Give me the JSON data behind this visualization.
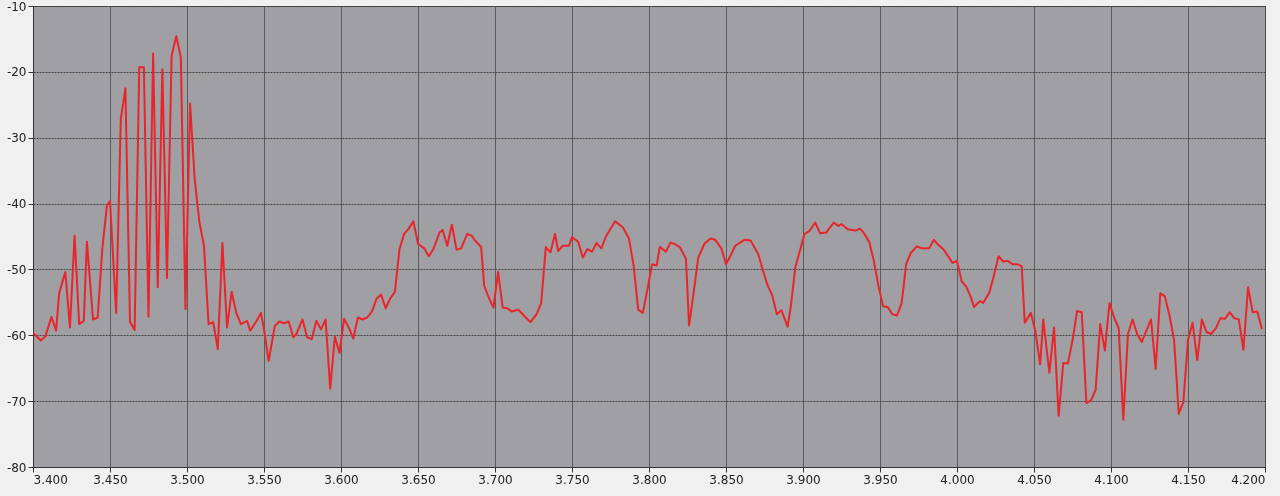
{
  "chart_data": {
    "type": "line",
    "xlim": [
      3.4,
      4.2
    ],
    "ylim": [
      -80,
      -10
    ],
    "xticks": [
      {
        "value": 3.4,
        "label": "3.400"
      },
      {
        "value": 3.45,
        "label": "3.450"
      },
      {
        "value": 3.5,
        "label": "3.500"
      },
      {
        "value": 3.55,
        "label": "3.550"
      },
      {
        "value": 3.6,
        "label": "3.600"
      },
      {
        "value": 3.65,
        "label": "3.650"
      },
      {
        "value": 3.7,
        "label": "3.700"
      },
      {
        "value": 3.75,
        "label": "3.750"
      },
      {
        "value": 3.8,
        "label": "3.800"
      },
      {
        "value": 3.85,
        "label": "3.850"
      },
      {
        "value": 3.9,
        "label": "3.900"
      },
      {
        "value": 3.95,
        "label": "3.950"
      },
      {
        "value": 4.0,
        "label": "4.000"
      },
      {
        "value": 4.05,
        "label": "4.050"
      },
      {
        "value": 4.1,
        "label": "4.100"
      },
      {
        "value": 4.15,
        "label": "4.150"
      },
      {
        "value": 4.2,
        "label": "4.200"
      }
    ],
    "yticks": [
      -80,
      -70,
      -60,
      -50,
      -40,
      -30,
      -20,
      -10
    ],
    "grid": true,
    "series": [
      {
        "color": "#e8252a",
        "x": [
          3.4,
          3.405,
          3.408,
          3.412,
          3.415,
          3.417,
          3.421,
          3.424,
          3.427,
          3.43,
          3.433,
          3.435,
          3.439,
          3.442,
          3.445,
          3.448,
          3.45,
          3.454,
          3.457,
          3.46,
          3.463,
          3.466,
          3.469,
          3.472,
          3.475,
          3.478,
          3.481,
          3.484,
          3.487,
          3.49,
          3.493,
          3.496,
          3.499,
          3.502,
          3.505,
          3.508,
          3.511,
          3.514,
          3.517,
          3.52,
          3.523,
          3.526,
          3.529,
          3.532,
          3.535,
          3.539,
          3.541,
          3.545,
          3.548,
          3.55,
          3.553,
          3.557,
          3.56,
          3.563,
          3.566,
          3.569,
          3.571,
          3.575,
          3.578,
          3.581,
          3.584,
          3.587,
          3.59,
          3.593,
          3.596,
          3.599,
          3.602,
          3.605,
          3.608,
          3.611,
          3.614,
          3.617,
          3.62,
          3.623,
          3.626,
          3.629,
          3.632,
          3.635,
          3.638,
          3.641,
          3.644,
          3.647,
          3.65,
          3.654,
          3.657,
          3.66,
          3.664,
          3.666,
          3.669,
          3.672,
          3.675,
          3.678,
          3.682,
          3.685,
          3.687,
          3.691,
          3.693,
          3.696,
          3.699,
          3.702,
          3.705,
          3.708,
          3.711,
          3.715,
          3.718,
          3.72,
          3.723,
          3.727,
          3.73,
          3.733,
          3.736,
          3.739,
          3.741,
          3.744,
          3.748,
          3.75,
          3.754,
          3.757,
          3.76,
          3.763,
          3.766,
          3.769,
          3.772,
          3.778,
          3.783,
          3.787,
          3.79,
          3.793,
          3.796,
          3.799,
          3.802,
          3.805,
          3.807,
          3.811,
          3.814,
          3.817,
          3.82,
          3.824,
          3.826,
          3.829,
          3.832,
          3.836,
          3.84,
          3.843,
          3.847,
          3.85,
          3.853,
          3.856,
          3.862,
          3.866,
          3.871,
          3.874,
          3.877,
          3.88,
          3.883,
          3.886,
          3.89,
          3.892,
          3.895,
          3.901,
          3.904,
          3.908,
          3.911,
          3.915,
          3.92,
          3.923,
          3.925,
          3.929,
          3.934,
          3.937,
          3.939,
          3.943,
          3.946,
          3.949,
          3.952,
          3.955,
          3.958,
          3.961,
          3.964,
          3.967,
          3.97,
          3.974,
          3.977,
          3.982,
          3.985,
          3.988,
          3.991,
          3.994,
          3.997,
          4.0,
          4.003,
          4.006,
          4.009,
          4.011,
          4.015,
          4.017,
          4.021,
          4.024,
          4.027,
          4.03,
          4.033,
          4.036,
          4.039,
          4.042,
          4.044,
          4.048,
          4.051,
          4.054,
          4.056,
          4.06,
          4.063,
          4.066,
          4.069,
          4.072,
          4.075,
          4.078,
          4.081,
          4.084,
          4.087,
          4.09,
          4.093,
          4.096,
          4.099,
          4.102,
          4.105,
          4.108,
          4.111,
          4.114,
          4.117,
          4.12,
          4.123,
          4.126,
          4.129,
          4.132,
          4.135,
          4.138,
          4.141,
          4.144,
          4.147,
          4.15,
          4.153,
          4.156,
          4.159,
          4.162,
          4.165,
          4.168,
          4.171,
          4.174,
          4.177,
          4.18,
          4.183,
          4.186,
          4.189,
          4.192,
          4.195,
          4.198
        ],
        "values": [
          -59.6,
          -60.8,
          -60.2,
          -57.2,
          -59.3,
          -53.6,
          -50.4,
          -58.8,
          -44.9,
          -58.3,
          -57.8,
          -45.8,
          -57.6,
          -57.3,
          -46.9,
          -40.3,
          -39.6,
          -56.6,
          -27.2,
          -22.5,
          -58.0,
          -59.2,
          -19.3,
          -19.3,
          -57.2,
          -17.2,
          -52.7,
          -19.6,
          -51.3,
          -17.6,
          -14.6,
          -17.8,
          -56.0,
          -24.8,
          -36.3,
          -42.7,
          -46.4,
          -58.3,
          -58.0,
          -62.1,
          -46.0,
          -58.8,
          -53.4,
          -56.6,
          -58.3,
          -57.8,
          -59.3,
          -57.9,
          -56.6,
          -59.1,
          -63.9,
          -58.6,
          -57.9,
          -58.2,
          -57.9,
          -60.3,
          -59.8,
          -57.6,
          -60.3,
          -60.6,
          -57.8,
          -59.1,
          -57.6,
          -68.1,
          -60.2,
          -62.7,
          -57.5,
          -58.8,
          -60.5,
          -57.3,
          -57.6,
          -57.3,
          -56.4,
          -54.5,
          -53.8,
          -55.9,
          -54.4,
          -53.4,
          -46.9,
          -44.6,
          -43.8,
          -42.7,
          -46.1,
          -46.8,
          -48.0,
          -46.9,
          -44.4,
          -44.0,
          -46.4,
          -43.2,
          -47.0,
          -46.8,
          -44.6,
          -44.9,
          -45.6,
          -46.6,
          -52.5,
          -54.3,
          -55.8,
          -50.4,
          -55.8,
          -55.9,
          -56.4,
          -56.1,
          -56.8,
          -57.3,
          -58.0,
          -56.8,
          -55.1,
          -46.6,
          -47.4,
          -44.6,
          -47.2,
          -46.4,
          -46.4,
          -45.1,
          -45.8,
          -48.2,
          -46.9,
          -47.3,
          -46.0,
          -46.8,
          -45.0,
          -42.7,
          -43.6,
          -45.3,
          -49.4,
          -56.1,
          -56.6,
          -53.0,
          -49.2,
          -49.4,
          -46.6,
          -47.3,
          -45.9,
          -46.2,
          -46.6,
          -48.4,
          -58.5,
          -53.5,
          -48.2,
          -46.1,
          -45.3,
          -45.5,
          -46.8,
          -49.2,
          -47.9,
          -46.4,
          -45.5,
          -45.6,
          -47.7,
          -50.2,
          -52.4,
          -53.9,
          -56.8,
          -56.2,
          -58.7,
          -55.8,
          -49.7,
          -44.6,
          -44.2,
          -42.9,
          -44.5,
          -44.4,
          -42.9,
          -43.4,
          -43.1,
          -43.9,
          -44.1,
          -43.8,
          -44.3,
          -45.8,
          -48.7,
          -52.5,
          -55.6,
          -55.7,
          -56.8,
          -57.0,
          -55.2,
          -49.2,
          -47.5,
          -46.5,
          -46.8,
          -46.8,
          -45.5,
          -46.3,
          -46.9,
          -47.9,
          -49.0,
          -48.7,
          -51.8,
          -52.6,
          -54.2,
          -55.7,
          -54.8,
          -55.1,
          -53.5,
          -50.9,
          -48.0,
          -48.8,
          -48.7,
          -49.2,
          -49.2,
          -49.5,
          -58.1,
          -56.6,
          -59.5,
          -64.4,
          -57.6,
          -65.7,
          -58.8,
          -72.2,
          -64.2,
          -64.3,
          -60.8,
          -56.3,
          -56.5,
          -70.3,
          -69.9,
          -68.3,
          -58.3,
          -62.3,
          -55.1,
          -57.3,
          -58.9,
          -72.8,
          -59.8,
          -57.6,
          -59.8,
          -61.0,
          -59.3,
          -57.6,
          -65.1,
          -53.6,
          -54.1,
          -57.0,
          -60.8,
          -71.9,
          -70.1,
          -60.7,
          -58.1,
          -63.8,
          -57.6,
          -59.5,
          -59.8,
          -59.0,
          -57.4,
          -57.5,
          -56.5,
          -57.4,
          -57.6,
          -62.2,
          -52.7,
          -56.5,
          -56.4,
          -59.1
        ]
      }
    ]
  }
}
